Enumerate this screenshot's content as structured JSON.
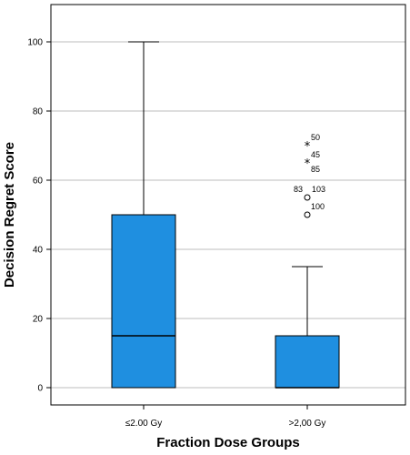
{
  "chart_data": {
    "type": "boxplot",
    "xlabel": "Fraction Dose Groups",
    "ylabel": "Decision Regret Score",
    "ylim": [
      0,
      110
    ],
    "yticks": [
      0,
      20,
      40,
      60,
      80,
      100
    ],
    "grid": true,
    "box_color": "#1f8fe0",
    "groups": [
      {
        "label": "≤2.00 Gy",
        "whisker_low": 0,
        "q1": 0,
        "median": 15,
        "q3": 50,
        "whisker_high": 100,
        "outliers": []
      },
      {
        "label": ">2,00 Gy",
        "whisker_low": 0,
        "q1": 0,
        "median": 0,
        "q3": 15,
        "whisker_high": 35,
        "outliers": [
          {
            "value": 70,
            "marker": "star",
            "labels": [
              "50"
            ]
          },
          {
            "value": 65,
            "marker": "star",
            "labels": [
              "45",
              "85"
            ]
          },
          {
            "value": 55,
            "marker": "circle",
            "labels": [
              "83",
              "103"
            ]
          },
          {
            "value": 50,
            "marker": "circle",
            "labels": [
              "100"
            ]
          }
        ]
      }
    ]
  }
}
